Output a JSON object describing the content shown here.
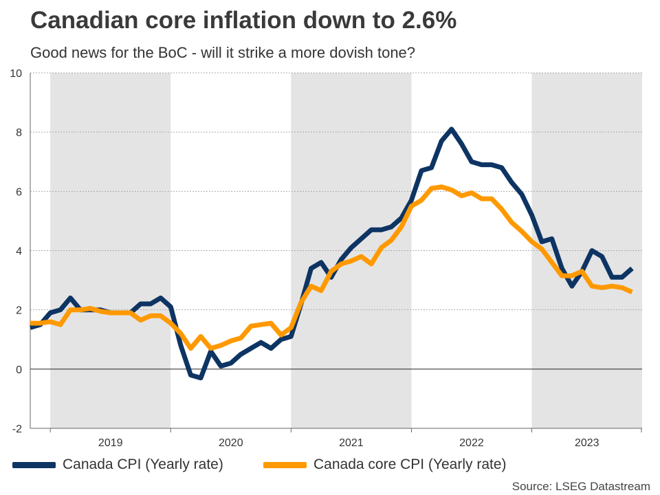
{
  "title": "Canadian core inflation down to 2.6%",
  "subtitle": "Good news for the BoC - will it strike a more dovish tone?",
  "source": "Source: LSEG Datastream",
  "chart_data": {
    "type": "line",
    "title": "Canadian core inflation down to 2.6%",
    "subtitle": "Good news for the BoC - will it strike a more dovish tone?",
    "xlabel": "",
    "ylabel": "",
    "ylim": [
      -2,
      10
    ],
    "yticks": [
      -2,
      0,
      2,
      4,
      6,
      8,
      10
    ],
    "x_tick_labels": [
      "2019",
      "2020",
      "2021",
      "2022",
      "2023"
    ],
    "x_start": "2018-11",
    "x_end": "2023-12",
    "shaded_years": [
      "2019",
      "2021",
      "2023"
    ],
    "grid": true,
    "legend_position": "bottom",
    "x": [
      "2018-11",
      "2018-12",
      "2019-01",
      "2019-02",
      "2019-03",
      "2019-04",
      "2019-05",
      "2019-06",
      "2019-07",
      "2019-08",
      "2019-09",
      "2019-10",
      "2019-11",
      "2019-12",
      "2020-01",
      "2020-02",
      "2020-03",
      "2020-04",
      "2020-05",
      "2020-06",
      "2020-07",
      "2020-08",
      "2020-09",
      "2020-10",
      "2020-11",
      "2020-12",
      "2021-01",
      "2021-02",
      "2021-03",
      "2021-04",
      "2021-05",
      "2021-06",
      "2021-07",
      "2021-08",
      "2021-09",
      "2021-10",
      "2021-11",
      "2021-12",
      "2022-01",
      "2022-02",
      "2022-03",
      "2022-04",
      "2022-05",
      "2022-06",
      "2022-07",
      "2022-08",
      "2022-09",
      "2022-10",
      "2022-11",
      "2022-12",
      "2023-01",
      "2023-02",
      "2023-03",
      "2023-04",
      "2023-05",
      "2023-06",
      "2023-07",
      "2023-08",
      "2023-09",
      "2023-10",
      "2023-11"
    ],
    "series": [
      {
        "name": "Canada CPI (Yearly rate)",
        "color": "#0d3463",
        "values": [
          1.4,
          1.5,
          1.9,
          2.0,
          2.4,
          2.0,
          2.0,
          2.0,
          1.9,
          1.9,
          1.9,
          2.2,
          2.2,
          2.4,
          2.1,
          0.8,
          -0.2,
          -0.3,
          0.6,
          0.1,
          0.2,
          0.5,
          0.7,
          0.9,
          0.7,
          1.0,
          1.1,
          2.2,
          3.4,
          3.6,
          3.1,
          3.7,
          4.1,
          4.4,
          4.7,
          4.7,
          4.8,
          5.1,
          5.7,
          6.7,
          6.8,
          7.7,
          8.1,
          7.6,
          7.0,
          6.9,
          6.9,
          6.8,
          6.3,
          5.9,
          5.2,
          4.3,
          4.4,
          3.4,
          2.8,
          3.3,
          4.0,
          3.8,
          3.1,
          3.1,
          3.4
        ]
      },
      {
        "name": "Canada core CPI (Yearly rate)",
        "color": "#ff9900",
        "values": [
          1.55,
          1.55,
          1.6,
          1.5,
          2.0,
          2.0,
          2.05,
          1.95,
          1.9,
          1.9,
          1.9,
          1.65,
          1.8,
          1.8,
          1.55,
          1.2,
          0.7,
          1.1,
          0.7,
          0.8,
          0.95,
          1.05,
          1.45,
          1.5,
          1.55,
          1.15,
          1.4,
          2.25,
          2.8,
          2.65,
          3.3,
          3.55,
          3.65,
          3.8,
          3.55,
          4.1,
          4.35,
          4.8,
          5.5,
          5.7,
          6.1,
          6.15,
          6.05,
          5.85,
          5.95,
          5.75,
          5.75,
          5.4,
          4.95,
          4.65,
          4.3,
          4.05,
          3.6,
          3.15,
          3.15,
          3.3,
          2.8,
          2.75,
          2.8,
          2.75,
          2.6
        ]
      }
    ]
  }
}
